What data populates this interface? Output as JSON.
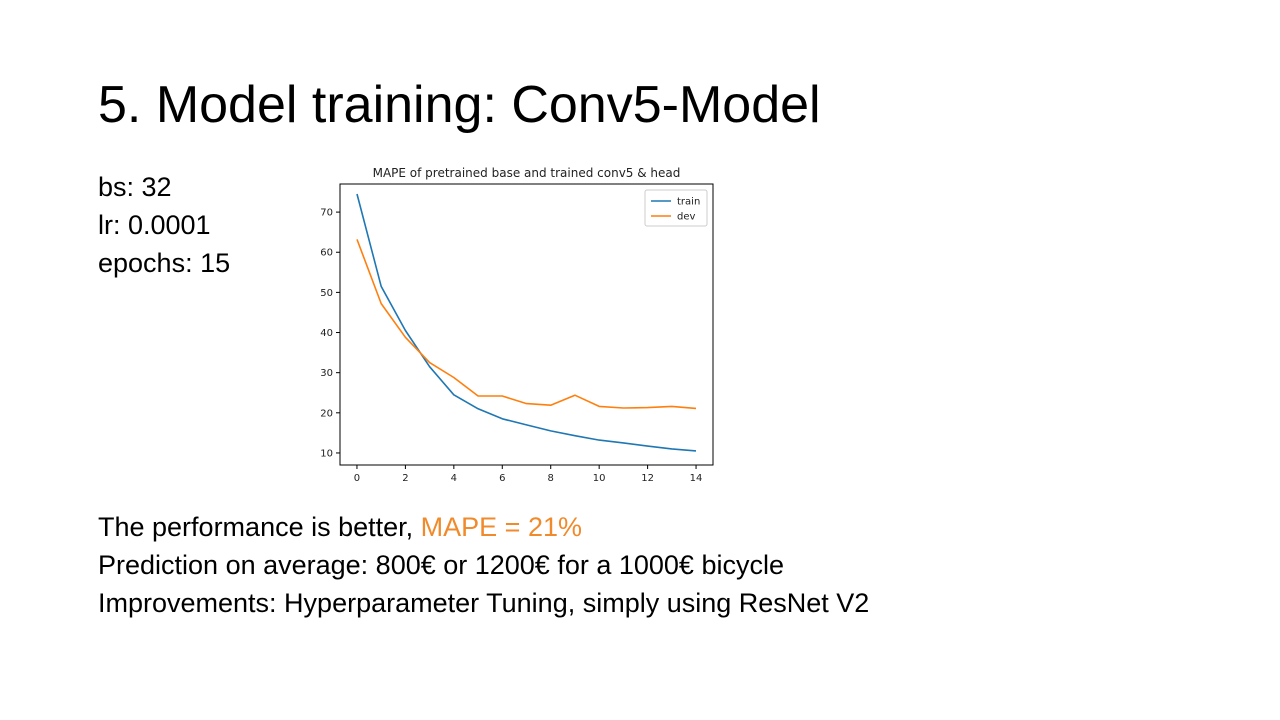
{
  "slide": {
    "title": "5. Model training: Conv5-Model",
    "params": [
      "bs: 32",
      "lr: 0.0001",
      "epochs: 15"
    ],
    "line1_prefix": "The performance is better, ",
    "line1_accent": "MAPE = 21%",
    "line2": "Prediction on average: 800€ or 1200€ for a 1000€ bicycle",
    "line3": "Improvements: Hyperparameter Tuning, simply using ResNet V2"
  },
  "colors": {
    "accent": "#F08A2B",
    "train": "#1F77B4",
    "dev": "#FF7F0E"
  },
  "chart_data": {
    "type": "line",
    "title": "MAPE of pretrained base and trained conv5 & head",
    "xlabel": "",
    "ylabel": "",
    "x": [
      0,
      1,
      2,
      3,
      4,
      5,
      6,
      7,
      8,
      9,
      10,
      11,
      12,
      13,
      14
    ],
    "xticks": [
      0,
      2,
      4,
      6,
      8,
      10,
      12,
      14
    ],
    "yticks": [
      10,
      20,
      30,
      40,
      50,
      60,
      70
    ],
    "xlim": [
      -0.7,
      14.7
    ],
    "ylim": [
      7,
      77
    ],
    "grid": false,
    "legend": "top-right",
    "series": [
      {
        "name": "train",
        "color": "#1F77B4",
        "values": [
          74.5,
          51.5,
          40.5,
          31.5,
          24.5,
          21,
          18.5,
          17,
          15.5,
          14.3,
          13.2,
          12.5,
          11.7,
          11,
          10.5
        ]
      },
      {
        "name": "dev",
        "color": "#FF7F0E",
        "values": [
          63.2,
          47.2,
          38.8,
          32.5,
          28.8,
          24.2,
          24.2,
          22.3,
          21.9,
          24.4,
          21.6,
          21.2,
          21.3,
          21.6,
          21.1
        ]
      }
    ]
  }
}
